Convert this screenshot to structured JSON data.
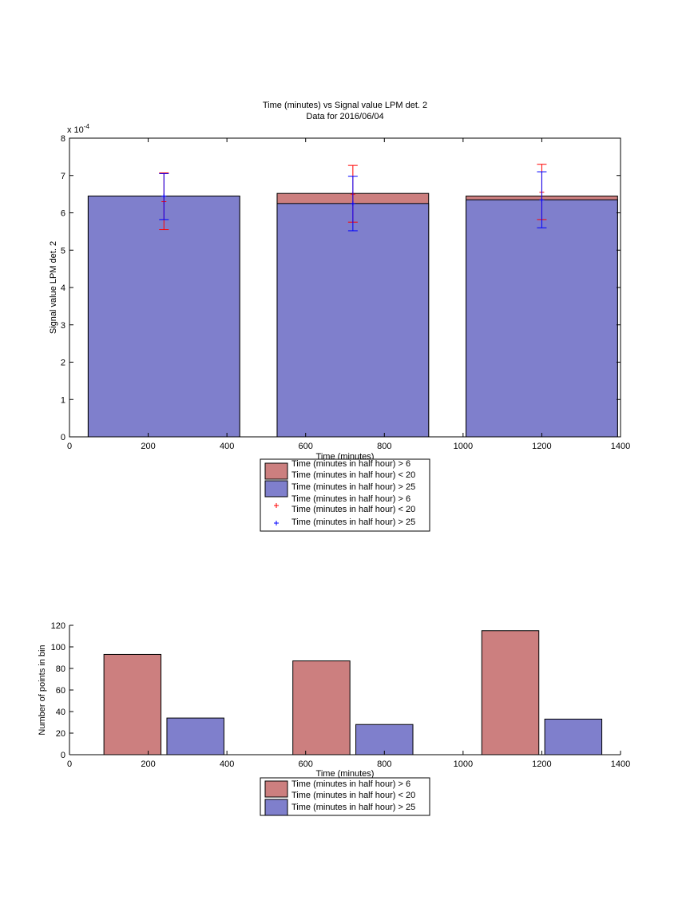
{
  "colors": {
    "red": "#cc7f7f",
    "blue": "#7f7fcc",
    "err_red": "#ff0000",
    "err_blue": "#0000ff",
    "edge": "#000000"
  },
  "chart_data": [
    {
      "type": "bar",
      "title": "Time (minutes) vs Signal value LPM det. 2",
      "subtitle": "Data for 2016/06/04",
      "xlabel": "Time (minutes)",
      "ylabel": "Signal value LPM det. 2",
      "multiplier": "x 10",
      "exponent": "-4",
      "xlim": [
        0,
        1400
      ],
      "ylim": [
        0,
        8
      ],
      "xticks": [
        "0",
        "200",
        "400",
        "600",
        "800",
        "1000",
        "1200",
        "1400"
      ],
      "yticks": [
        "0",
        "1",
        "2",
        "3",
        "4",
        "5",
        "6",
        "7",
        "8"
      ],
      "bar_width_x": 385,
      "categories": [
        240,
        720,
        1200
      ],
      "series": [
        {
          "name": "Time (minutes in half hour) > 6\nTime (minutes in half hour) < 20",
          "color": "red",
          "values": [
            6.45,
            6.52,
            6.45
          ]
        },
        {
          "name": "Time (minutes in half hour) > 25",
          "color": "blue",
          "values": [
            6.45,
            6.25,
            6.35
          ]
        }
      ],
      "errorbars": [
        {
          "name": "Time (minutes in half hour) > 6\nTime (minutes in half hour) < 20",
          "color": "err_red",
          "x": [
            240,
            720,
            1200
          ],
          "center": [
            6.3,
            6.5,
            6.55
          ],
          "low": [
            5.55,
            5.75,
            5.82
          ],
          "high": [
            7.07,
            7.27,
            7.3
          ]
        },
        {
          "name": "Time (minutes in half hour) > 25",
          "color": "err_blue",
          "x": [
            240,
            720,
            1200
          ],
          "center": [
            6.45,
            6.25,
            6.35
          ],
          "low": [
            5.82,
            5.52,
            5.6
          ],
          "high": [
            7.05,
            6.98,
            7.1
          ]
        }
      ],
      "legend": {
        "position": "below",
        "entries": [
          {
            "kind": "patch",
            "color": "red",
            "lines": [
              "Time (minutes in half hour) > 6",
              "Time (minutes in half hour) < 20"
            ]
          },
          {
            "kind": "patch",
            "color": "blue",
            "lines": [
              "Time (minutes in half hour) > 25"
            ]
          },
          {
            "kind": "marker",
            "color": "err_red",
            "lines": [
              "Time (minutes in half hour) > 6",
              "Time (minutes in half hour) < 20"
            ]
          },
          {
            "kind": "marker",
            "color": "err_blue",
            "lines": [
              "Time (minutes in half hour) > 25"
            ]
          }
        ]
      }
    },
    {
      "type": "bar",
      "title": "",
      "xlabel": "Time (minutes)",
      "ylabel": "Number of points in bin",
      "xlim": [
        0,
        1400
      ],
      "ylim": [
        0,
        120
      ],
      "xticks": [
        "0",
        "200",
        "400",
        "600",
        "800",
        "1000",
        "1200",
        "1400"
      ],
      "yticks": [
        "0",
        "20",
        "40",
        "60",
        "80",
        "100",
        "120"
      ],
      "bar_width_x": 145,
      "bars": [
        {
          "series": 0,
          "color": "red",
          "x": 160,
          "value": 93
        },
        {
          "series": 1,
          "color": "blue",
          "x": 320,
          "value": 34
        },
        {
          "series": 0,
          "color": "red",
          "x": 640,
          "value": 87
        },
        {
          "series": 1,
          "color": "blue",
          "x": 800,
          "value": 28
        },
        {
          "series": 0,
          "color": "red",
          "x": 1120,
          "value": 115
        },
        {
          "series": 1,
          "color": "blue",
          "x": 1280,
          "value": 33
        }
      ],
      "series": [
        {
          "name": "Time (minutes in half hour) > 6\nTime (minutes in half hour) < 20",
          "color": "red"
        },
        {
          "name": "Time (minutes in half hour) > 25",
          "color": "blue"
        }
      ],
      "legend": {
        "position": "below",
        "entries": [
          {
            "kind": "patch",
            "color": "red",
            "lines": [
              "Time (minutes in half hour) > 6",
              "Time (minutes in half hour) < 20"
            ]
          },
          {
            "kind": "patch",
            "color": "blue",
            "lines": [
              "Time (minutes in half hour) > 25"
            ]
          }
        ]
      }
    }
  ]
}
